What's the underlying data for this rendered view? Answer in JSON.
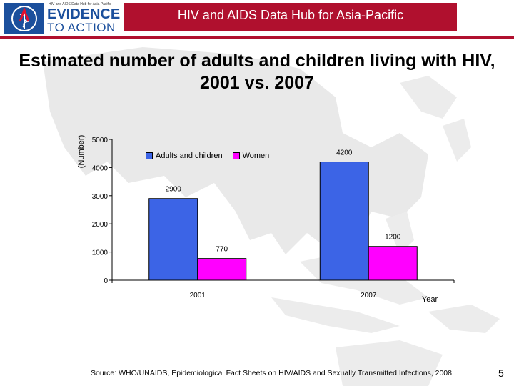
{
  "header": {
    "logo_small_text": "HIV and AIDS Data Hub for Asia Pacific",
    "logo_line1": "EVIDENCE",
    "logo_line2": "TO ACTION",
    "hub_title": "HIV and AIDS Data Hub for Asia-Pacific"
  },
  "page_title": "Estimated number of adults and children living with HIV, 2001 vs. 2007",
  "colors": {
    "brand_red": "#b0102e",
    "series_adults": "#3c64e6",
    "series_women": "#ff00ff"
  },
  "chart_data": {
    "type": "bar",
    "categories": [
      "2001",
      "2007"
    ],
    "series": [
      {
        "name": "Adults and children",
        "values": [
          2900,
          4200
        ],
        "color": "#3c64e6"
      },
      {
        "name": "Women",
        "values": [
          770,
          1200
        ],
        "color": "#ff00ff"
      }
    ],
    "ylabel": "(Number)",
    "xlabel": "Year",
    "ylim": [
      0,
      5000
    ],
    "yticks": [
      0,
      1000,
      2000,
      3000,
      4000,
      5000
    ],
    "grid": false,
    "legend_position": "top-left"
  },
  "footer": {
    "source": "Source: WHO/UNAIDS, Epidemiological Fact Sheets on HIV/AIDS and Sexually Transmitted Infections, 2008",
    "page_number": "5"
  }
}
